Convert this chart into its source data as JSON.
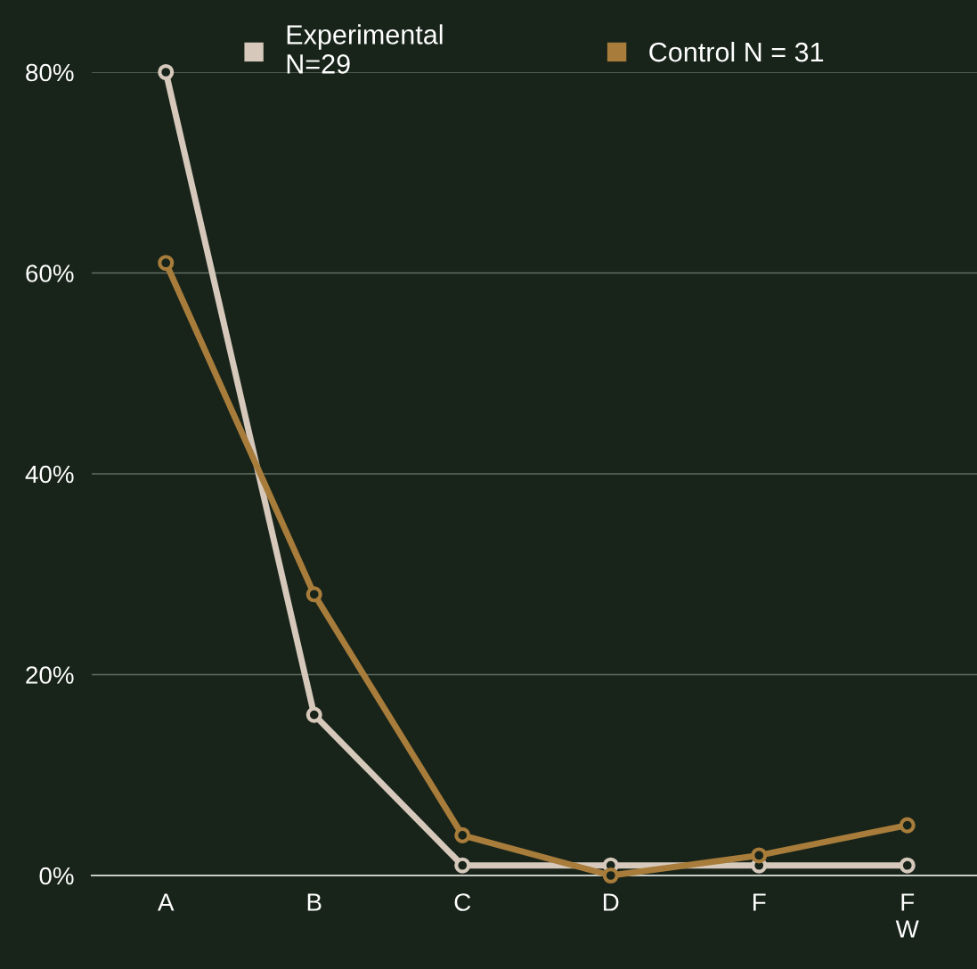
{
  "chart_data": {
    "type": "line",
    "categories": [
      "A",
      "B",
      "C",
      "D",
      "F",
      "F\nW"
    ],
    "series": [
      {
        "name": "Experimental\nN=29",
        "color": "#d6c9bc",
        "values": [
          80,
          16,
          1,
          1,
          1,
          1
        ]
      },
      {
        "name": "Control N = 31",
        "color": "#a87c3a",
        "values": [
          61,
          28,
          4,
          0,
          2,
          5
        ]
      }
    ],
    "ylim": [
      0,
      80
    ],
    "yticks": [
      {
        "value": 0,
        "label": "0%"
      },
      {
        "value": 20,
        "label": "20%"
      },
      {
        "value": 40,
        "label": "40%"
      },
      {
        "value": 60,
        "label": "60%"
      },
      {
        "value": 80,
        "label": "80%"
      }
    ],
    "grid": "y",
    "legend": "top",
    "marker": "circle",
    "line_style": "solid"
  }
}
